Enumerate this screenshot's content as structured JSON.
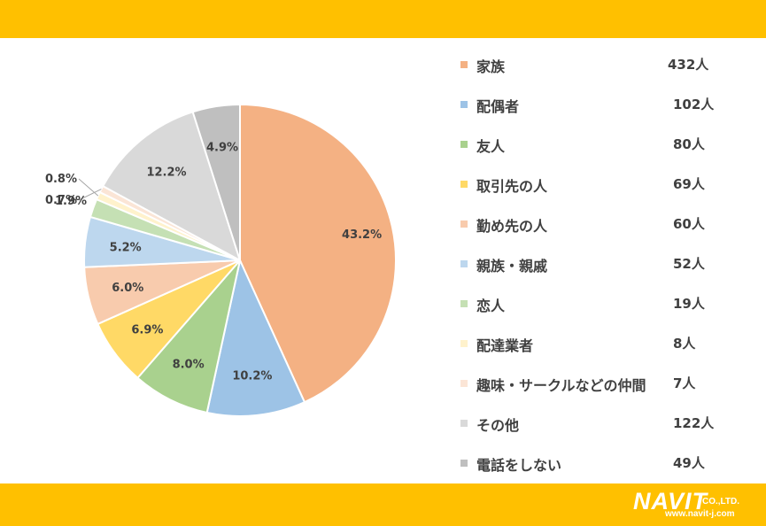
{
  "chart_data": {
    "type": "pie",
    "title": "",
    "start_angle_deg": 0,
    "direction": "clockwise",
    "slices": [
      {
        "label": "家族",
        "count": "432人",
        "value": 43.2,
        "pct_label": "43.2%",
        "color": "#F4B183"
      },
      {
        "label": "配偶者",
        "count": "102人",
        "value": 10.2,
        "pct_label": "10.2%",
        "color": "#9DC3E6"
      },
      {
        "label": "友人",
        "count": "80人",
        "value": 8.0,
        "pct_label": "8.0%",
        "color": "#A9D18E"
      },
      {
        "label": "取引先の人",
        "count": "69人",
        "value": 6.9,
        "pct_label": "6.9%",
        "color": "#FFD966"
      },
      {
        "label": "勤め先の人",
        "count": "60人",
        "value": 6.0,
        "pct_label": "6.0%",
        "color": "#F8CBAD"
      },
      {
        "label": "親族・親戚",
        "count": "52人",
        "value": 5.2,
        "pct_label": "5.2%",
        "color": "#BDD7EE"
      },
      {
        "label": "恋人",
        "count": "19人",
        "value": 1.9,
        "pct_label": "1.9%",
        "color": "#C5E0B4"
      },
      {
        "label": "配達業者",
        "count": "8人",
        "value": 0.8,
        "pct_label": "0.8%",
        "color": "#FFF2CC"
      },
      {
        "label": "趣味・サークルなどの仲間",
        "count": "7人",
        "value": 0.7,
        "pct_label": "0.7%",
        "color": "#FBE5D6"
      },
      {
        "label": "その他",
        "count": "122人",
        "value": 12.2,
        "pct_label": "12.2%",
        "color": "#D9D9D9"
      },
      {
        "label": "電話をしない",
        "count": "49人",
        "value": 4.9,
        "pct_label": "4.9%",
        "color": "#BFBFBF"
      }
    ]
  },
  "branding": {
    "logo_text": "NAVIT",
    "company_suffix": "CO.,LTD.",
    "url": "www.navit-j.com",
    "bar_color": "#FFC000"
  }
}
